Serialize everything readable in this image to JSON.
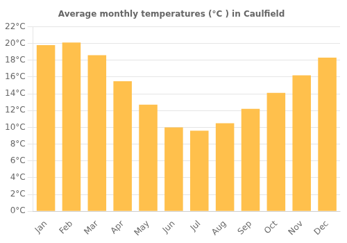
{
  "chart_data": {
    "type": "bar",
    "title": "Average monthly temperatures (°C ) in Caulfield",
    "categories": [
      "Jan",
      "Feb",
      "Mar",
      "Apr",
      "May",
      "Jun",
      "Jul",
      "Aug",
      "Sep",
      "Oct",
      "Nov",
      "Dec"
    ],
    "values": [
      19.8,
      20.1,
      18.6,
      15.5,
      12.7,
      10.0,
      9.6,
      10.5,
      12.2,
      14.1,
      16.2,
      18.3
    ],
    "color": "#FFC04C",
    "ylim": [
      0,
      22
    ],
    "yticks": [
      {
        "value": 0,
        "label": "0°C"
      },
      {
        "value": 2,
        "label": "2°C"
      },
      {
        "value": 4,
        "label": "4°C"
      },
      {
        "value": 6,
        "label": "6°C"
      },
      {
        "value": 8,
        "label": "8°C"
      },
      {
        "value": 10,
        "label": "10°C"
      },
      {
        "value": 12,
        "label": "12°C"
      },
      {
        "value": 14,
        "label": "14°C"
      },
      {
        "value": 16,
        "label": "16°C"
      },
      {
        "value": 18,
        "label": "18°C"
      },
      {
        "value": 20,
        "label": "20°C"
      },
      {
        "value": 22,
        "label": "22°C"
      }
    ],
    "grid": true
  }
}
